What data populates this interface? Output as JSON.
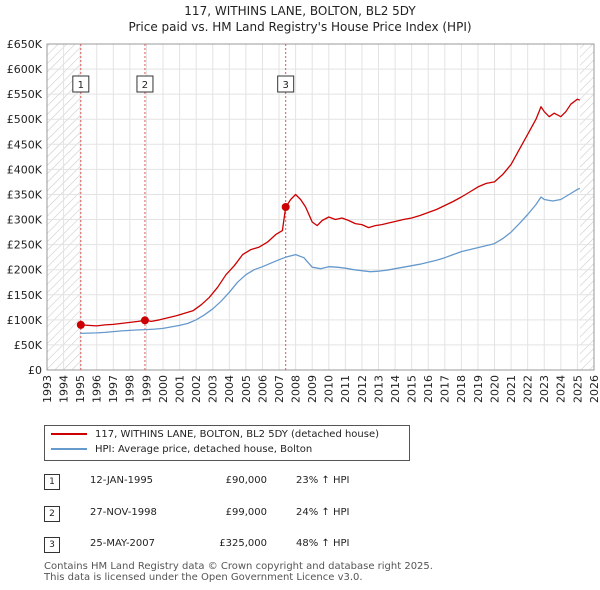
{
  "chart_data": {
    "type": "line",
    "title": "117, WITHINS LANE, BOLTON, BL2 5DY",
    "subtitle": "Price paid vs. HM Land Registry's House Price Index (HPI)",
    "xlim": [
      1993,
      2026
    ],
    "ylim": [
      0,
      650000
    ],
    "x_ticks": [
      1993,
      1994,
      1995,
      1996,
      1997,
      1998,
      1999,
      2000,
      2001,
      2002,
      2003,
      2004,
      2005,
      2006,
      2007,
      2008,
      2009,
      2010,
      2011,
      2012,
      2013,
      2014,
      2015,
      2016,
      2017,
      2018,
      2019,
      2020,
      2021,
      2022,
      2023,
      2024,
      2025,
      2026
    ],
    "y_ticks": [
      {
        "value": 0,
        "label": "£0"
      },
      {
        "value": 50000,
        "label": "£50K"
      },
      {
        "value": 100000,
        "label": "£100K"
      },
      {
        "value": 150000,
        "label": "£150K"
      },
      {
        "value": 200000,
        "label": "£200K"
      },
      {
        "value": 250000,
        "label": "£250K"
      },
      {
        "value": 300000,
        "label": "£300K"
      },
      {
        "value": 350000,
        "label": "£350K"
      },
      {
        "value": 400000,
        "label": "£400K"
      },
      {
        "value": 450000,
        "label": "£450K"
      },
      {
        "value": 500000,
        "label": "£500K"
      },
      {
        "value": 550000,
        "label": "£550K"
      },
      {
        "value": 600000,
        "label": "£600K"
      },
      {
        "value": 650000,
        "label": "£650K"
      }
    ],
    "hatched_ranges": [
      [
        1993,
        1995.04
      ],
      [
        2025.15,
        2026
      ]
    ],
    "series": [
      {
        "name": "117, WITHINS LANE, BOLTON, BL2 5DY (detached house)",
        "color": "#cc0000",
        "points": [
          [
            1995.04,
            90000
          ],
          [
            1995.5,
            89000
          ],
          [
            1996.0,
            88000
          ],
          [
            1996.5,
            90000
          ],
          [
            1997.0,
            91000
          ],
          [
            1997.5,
            93000
          ],
          [
            1998.0,
            95000
          ],
          [
            1998.5,
            97000
          ],
          [
            1998.91,
            99000
          ],
          [
            1999.3,
            97000
          ],
          [
            1999.8,
            100000
          ],
          [
            2000.3,
            104000
          ],
          [
            2000.8,
            108000
          ],
          [
            2001.3,
            113000
          ],
          [
            2001.8,
            118000
          ],
          [
            2002.3,
            130000
          ],
          [
            2002.8,
            145000
          ],
          [
            2003.3,
            165000
          ],
          [
            2003.8,
            190000
          ],
          [
            2004.3,
            208000
          ],
          [
            2004.8,
            230000
          ],
          [
            2005.3,
            240000
          ],
          [
            2005.8,
            245000
          ],
          [
            2006.3,
            255000
          ],
          [
            2006.8,
            270000
          ],
          [
            2007.2,
            278000
          ],
          [
            2007.4,
            325000
          ],
          [
            2007.7,
            340000
          ],
          [
            2008.0,
            350000
          ],
          [
            2008.3,
            340000
          ],
          [
            2008.6,
            325000
          ],
          [
            2009.0,
            295000
          ],
          [
            2009.3,
            288000
          ],
          [
            2009.6,
            298000
          ],
          [
            2010.0,
            305000
          ],
          [
            2010.4,
            300000
          ],
          [
            2010.8,
            303000
          ],
          [
            2011.2,
            298000
          ],
          [
            2011.6,
            292000
          ],
          [
            2012.0,
            290000
          ],
          [
            2012.4,
            284000
          ],
          [
            2012.8,
            288000
          ],
          [
            2013.2,
            290000
          ],
          [
            2013.6,
            293000
          ],
          [
            2014.0,
            296000
          ],
          [
            2014.5,
            300000
          ],
          [
            2015.0,
            303000
          ],
          [
            2015.5,
            308000
          ],
          [
            2016.0,
            314000
          ],
          [
            2016.5,
            320000
          ],
          [
            2017.0,
            328000
          ],
          [
            2017.5,
            336000
          ],
          [
            2018.0,
            345000
          ],
          [
            2018.5,
            355000
          ],
          [
            2019.0,
            365000
          ],
          [
            2019.5,
            372000
          ],
          [
            2020.0,
            375000
          ],
          [
            2020.5,
            390000
          ],
          [
            2021.0,
            410000
          ],
          [
            2021.5,
            440000
          ],
          [
            2022.0,
            470000
          ],
          [
            2022.5,
            500000
          ],
          [
            2022.8,
            525000
          ],
          [
            2023.0,
            515000
          ],
          [
            2023.3,
            505000
          ],
          [
            2023.6,
            512000
          ],
          [
            2024.0,
            505000
          ],
          [
            2024.3,
            515000
          ],
          [
            2024.6,
            530000
          ],
          [
            2025.0,
            540000
          ],
          [
            2025.15,
            538000
          ]
        ]
      },
      {
        "name": "HPI: Average price, detached house, Bolton",
        "color": "#6699cc",
        "points": [
          [
            1995.0,
            73000
          ],
          [
            1995.5,
            73500
          ],
          [
            1996.0,
            74000
          ],
          [
            1996.5,
            75000
          ],
          [
            1997.0,
            76500
          ],
          [
            1997.5,
            78000
          ],
          [
            1998.0,
            79000
          ],
          [
            1998.5,
            80000
          ],
          [
            1999.0,
            80500
          ],
          [
            1999.5,
            81500
          ],
          [
            2000.0,
            83000
          ],
          [
            2000.5,
            86000
          ],
          [
            2001.0,
            89000
          ],
          [
            2001.5,
            93000
          ],
          [
            2002.0,
            100000
          ],
          [
            2002.5,
            110000
          ],
          [
            2003.0,
            122000
          ],
          [
            2003.5,
            137000
          ],
          [
            2004.0,
            155000
          ],
          [
            2004.5,
            175000
          ],
          [
            2005.0,
            190000
          ],
          [
            2005.5,
            200000
          ],
          [
            2006.0,
            206000
          ],
          [
            2006.5,
            213000
          ],
          [
            2007.0,
            220000
          ],
          [
            2007.5,
            226000
          ],
          [
            2008.0,
            230000
          ],
          [
            2008.5,
            224000
          ],
          [
            2009.0,
            205000
          ],
          [
            2009.5,
            202000
          ],
          [
            2010.0,
            206000
          ],
          [
            2010.5,
            205000
          ],
          [
            2011.0,
            203000
          ],
          [
            2011.5,
            200000
          ],
          [
            2012.0,
            198000
          ],
          [
            2012.5,
            196000
          ],
          [
            2013.0,
            197000
          ],
          [
            2013.5,
            199000
          ],
          [
            2014.0,
            202000
          ],
          [
            2014.5,
            205000
          ],
          [
            2015.0,
            208000
          ],
          [
            2015.5,
            211000
          ],
          [
            2016.0,
            215000
          ],
          [
            2016.5,
            219000
          ],
          [
            2017.0,
            224000
          ],
          [
            2017.5,
            230000
          ],
          [
            2018.0,
            236000
          ],
          [
            2018.5,
            240000
          ],
          [
            2019.0,
            244000
          ],
          [
            2019.5,
            248000
          ],
          [
            2020.0,
            252000
          ],
          [
            2020.5,
            262000
          ],
          [
            2021.0,
            275000
          ],
          [
            2021.5,
            292000
          ],
          [
            2022.0,
            310000
          ],
          [
            2022.5,
            330000
          ],
          [
            2022.8,
            345000
          ],
          [
            2023.0,
            340000
          ],
          [
            2023.5,
            337000
          ],
          [
            2024.0,
            340000
          ],
          [
            2024.5,
            350000
          ],
          [
            2025.0,
            360000
          ],
          [
            2025.15,
            362000
          ]
        ]
      }
    ],
    "sales": [
      {
        "id": "1",
        "x": 1995.04,
        "price": 90000
      },
      {
        "id": "2",
        "x": 1998.91,
        "price": 99000
      },
      {
        "id": "3",
        "x": 2007.4,
        "price": 325000
      }
    ]
  },
  "legend": {
    "property_label": "117, WITHINS LANE, BOLTON, BL2 5DY (detached house)",
    "hpi_label": "HPI: Average price, detached house, Bolton",
    "property_color": "#cc0000",
    "hpi_color": "#6699cc"
  },
  "transactions": [
    {
      "id": "1",
      "date": "12-JAN-1995",
      "price": "£90,000",
      "hpi_change": "23% ↑ HPI"
    },
    {
      "id": "2",
      "date": "27-NOV-1998",
      "price": "£99,000",
      "hpi_change": "24% ↑ HPI"
    },
    {
      "id": "3",
      "date": "25-MAY-2007",
      "price": "£325,000",
      "hpi_change": "48% ↑ HPI"
    }
  ],
  "footer": {
    "line1": "Contains HM Land Registry data © Crown copyright and database right 2025.",
    "line2": "This data is licensed under the Open Government Licence v3.0."
  }
}
